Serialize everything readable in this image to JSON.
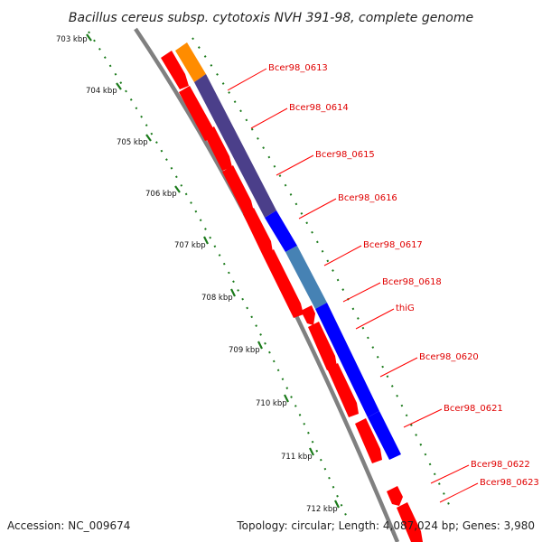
{
  "title": "Bacillus cereus subsp. cytotoxis NVH 391-98, complete genome",
  "accession": "Accession: NC_009674",
  "summary": "Topology: circular; Length: 4,087,024 bp; Genes: 3,980",
  "kbp_ticks": [
    "703 kbp",
    "704 kbp",
    "705 kbp",
    "706 kbp",
    "707 kbp",
    "708 kbp",
    "709 kbp",
    "710 kbp",
    "711 kbp",
    "712 kbp"
  ],
  "gene_labels": [
    "Bcer98_0613",
    "Bcer98_0614",
    "Bcer98_0615",
    "Bcer98_0616",
    "Bcer98_0617",
    "Bcer98_0618",
    "thiG",
    "Bcer98_0620",
    "Bcer98_0621",
    "Bcer98_0622",
    "Bcer98_0623"
  ],
  "colors": {
    "cds": "#ff0000",
    "backbone": "#808080",
    "tick": "#1a7a1a",
    "label": "#e00000",
    "cog_orange": "#ff8c00",
    "cog_purple": "#4b3f8a",
    "cog_blue": "#0000ff",
    "cog_steel": "#4682b4"
  }
}
